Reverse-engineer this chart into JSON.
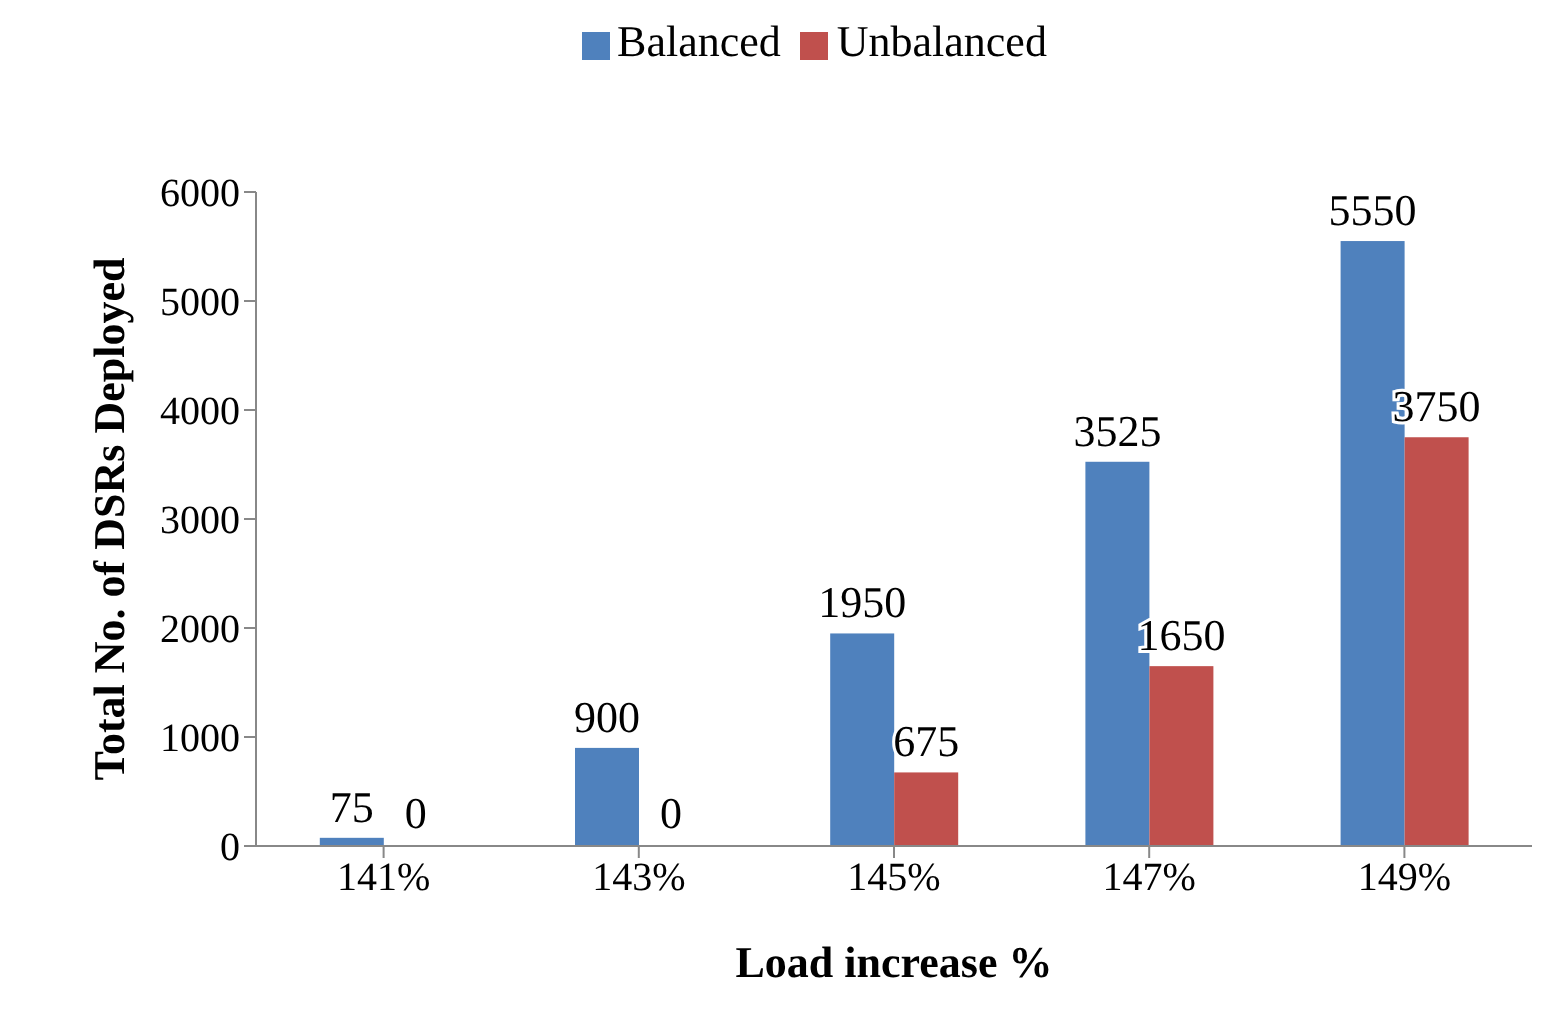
{
  "chart_data": {
    "type": "bar",
    "xlabel": "Load increase %",
    "ylabel": "Total No. of DSRs Deployed",
    "categories": [
      "141%",
      "143%",
      "145%",
      "147%",
      "149%"
    ],
    "series": [
      {
        "name": "Balanced",
        "color": "#4f81bd",
        "values": [
          75,
          900,
          1950,
          3525,
          5550
        ]
      },
      {
        "name": "Unbalanced",
        "color": "#c0504d",
        "values": [
          0,
          0,
          675,
          1650,
          3750
        ]
      }
    ],
    "ylim": [
      0,
      6000
    ],
    "yticks": [
      0,
      1000,
      2000,
      3000,
      4000,
      5000,
      6000
    ],
    "grid": false,
    "legend": "top",
    "data_labels": true
  }
}
